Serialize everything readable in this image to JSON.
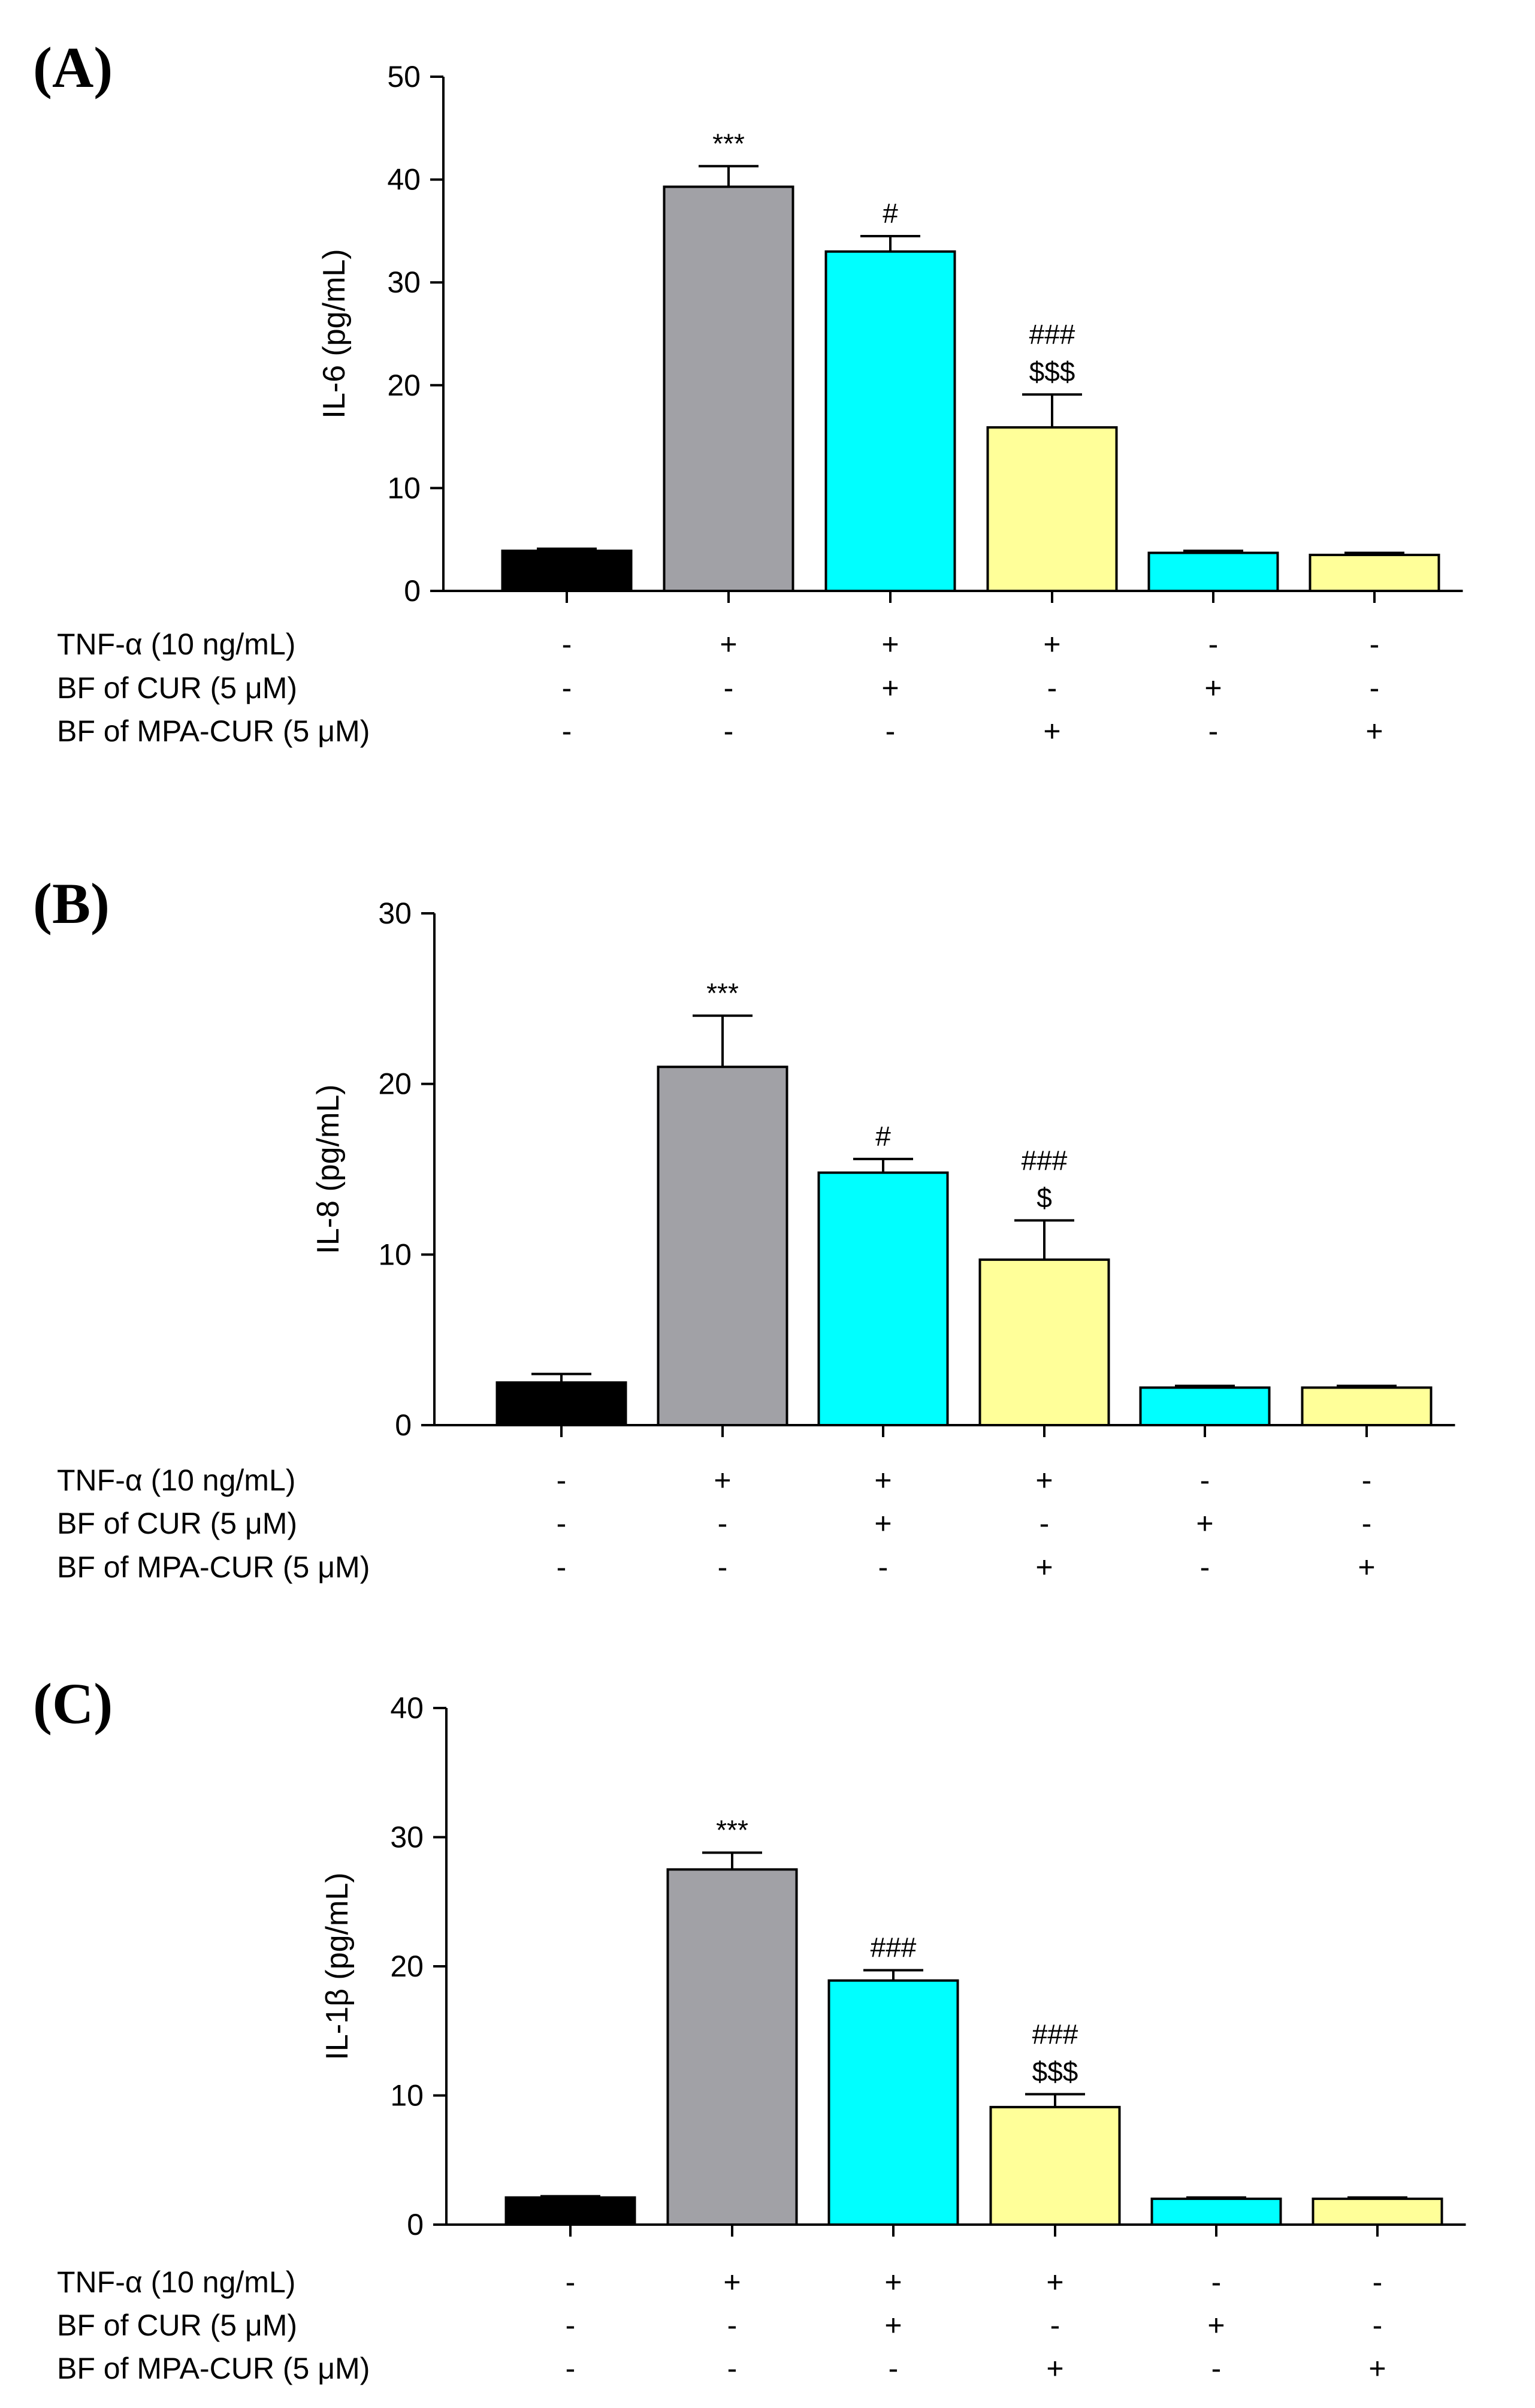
{
  "figure": {
    "background": "#ffffff",
    "condition_rows": [
      "TNF-α (10 ng/mL)",
      "BF of CUR (5 μM)",
      "BF of MPA-CUR (5 μM)"
    ]
  },
  "chart_data": [
    {
      "type": "bar",
      "panel_label": "(A)",
      "ylabel": "IL-6 (pg/mL)",
      "ylim": [
        0,
        50
      ],
      "yticks": [
        0,
        10,
        20,
        30,
        40,
        50
      ],
      "values": [
        3.9,
        39.3,
        33.0,
        15.9,
        3.7,
        3.5
      ],
      "errors": [
        0.2,
        2.0,
        1.5,
        3.2,
        0.2,
        0.2
      ],
      "colors": [
        "#000000",
        "#a1a1a6",
        "#00ffff",
        "#ffff99",
        "#00ffff",
        "#ffff99"
      ],
      "annotations": [
        [],
        [
          "***"
        ],
        [
          "#"
        ],
        [
          "###",
          "$$$"
        ],
        [],
        []
      ],
      "conditions": [
        [
          "-",
          "+",
          "+",
          "+",
          "-",
          "-"
        ],
        [
          "-",
          "-",
          "+",
          "-",
          "+",
          "-"
        ],
        [
          "-",
          "-",
          "-",
          "+",
          "-",
          "+"
        ]
      ]
    },
    {
      "type": "bar",
      "panel_label": "(B)",
      "ylabel": "IL-8 (pg/mL)",
      "ylim": [
        0,
        30
      ],
      "yticks": [
        0,
        10,
        20,
        30
      ],
      "values": [
        2.5,
        21.0,
        14.8,
        9.7,
        2.2,
        2.2
      ],
      "errors": [
        0.5,
        3.0,
        0.8,
        2.3,
        0.1,
        0.1
      ],
      "colors": [
        "#000000",
        "#a1a1a6",
        "#00ffff",
        "#ffff99",
        "#00ffff",
        "#ffff99"
      ],
      "annotations": [
        [],
        [
          "***"
        ],
        [
          "#"
        ],
        [
          "###",
          "$"
        ],
        [],
        []
      ],
      "conditions": [
        [
          "-",
          "+",
          "+",
          "+",
          "-",
          "-"
        ],
        [
          "-",
          "-",
          "+",
          "-",
          "+",
          "-"
        ],
        [
          "-",
          "-",
          "-",
          "+",
          "-",
          "+"
        ]
      ]
    },
    {
      "type": "bar",
      "panel_label": "(C)",
      "ylabel": "IL-1β (pg/mL)",
      "ylim": [
        0,
        40
      ],
      "yticks": [
        0,
        10,
        20,
        30,
        40
      ],
      "values": [
        2.1,
        27.5,
        18.9,
        9.1,
        2.0,
        2.0
      ],
      "errors": [
        0.1,
        1.3,
        0.8,
        1.0,
        0.1,
        0.1
      ],
      "colors": [
        "#000000",
        "#a1a1a6",
        "#00ffff",
        "#ffff99",
        "#00ffff",
        "#ffff99"
      ],
      "annotations": [
        [],
        [
          "***"
        ],
        [
          "###"
        ],
        [
          "###",
          "$$$"
        ],
        [],
        []
      ],
      "conditions": [
        [
          "-",
          "+",
          "+",
          "+",
          "-",
          "-"
        ],
        [
          "-",
          "-",
          "+",
          "-",
          "+",
          "-"
        ],
        [
          "-",
          "-",
          "-",
          "+",
          "-",
          "+"
        ]
      ]
    }
  ]
}
